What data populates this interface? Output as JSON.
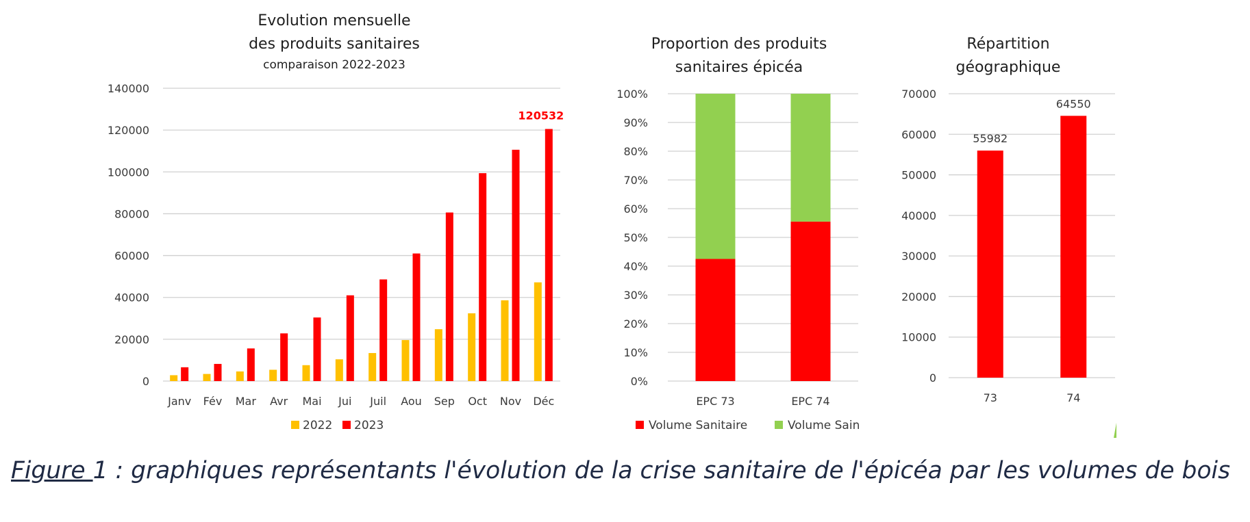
{
  "colors": {
    "y2022": "#ffc000",
    "y2023": "#ff0000",
    "sain": "#92d050",
    "grid": "#d0d0d0"
  },
  "chart_data": [
    {
      "type": "bar",
      "title": [
        "Evolution mensuelle",
        "des produits sanitaires"
      ],
      "subtitle": "comparaison 2022-2023",
      "categories": [
        "Janv",
        "Fév",
        "Mar",
        "Avr",
        "Mai",
        "Jui",
        "Juil",
        "Aou",
        "Sep",
        "Oct",
        "Nov",
        "Déc"
      ],
      "series": [
        {
          "name": "2022",
          "color": "#ffc000",
          "values": [
            2800,
            3400,
            4600,
            5400,
            7600,
            10400,
            13400,
            19600,
            24800,
            32400,
            38600,
            47200
          ]
        },
        {
          "name": "2023",
          "color": "#ff0000",
          "values": [
            6600,
            8200,
            15600,
            22800,
            30400,
            41000,
            48600,
            61000,
            80600,
            99400,
            110600,
            120532
          ]
        }
      ],
      "annotation": {
        "text": "120532",
        "category": "Déc",
        "series": "2023"
      },
      "ylim": [
        0,
        140000
      ],
      "yticks": [
        "0",
        "20000",
        "40000",
        "60000",
        "80000",
        "100000",
        "120000",
        "140000"
      ],
      "grid": true,
      "legend": "bottom"
    },
    {
      "type": "bar",
      "stacked": true,
      "title": [
        "Proportion des produits",
        "sanitaires épicéa"
      ],
      "categories": [
        "EPC 73",
        "EPC 74"
      ],
      "series": [
        {
          "name": "Volume Sanitaire",
          "color": "#ff0000",
          "values": [
            42.5,
            55.5
          ]
        },
        {
          "name": "Volume Sain",
          "color": "#92d050",
          "values": [
            57.5,
            44.5
          ]
        }
      ],
      "ylim": [
        0,
        100
      ],
      "yticks": [
        "0%",
        "10%",
        "20%",
        "30%",
        "40%",
        "50%",
        "60%",
        "70%",
        "80%",
        "90%",
        "100%"
      ],
      "grid": true,
      "legend": "bottom"
    },
    {
      "type": "bar",
      "title": [
        "Répartition",
        "géographique"
      ],
      "categories": [
        "73",
        "74"
      ],
      "series": [
        {
          "color": "#ff0000",
          "values": [
            55982,
            64550
          ]
        }
      ],
      "data_labels": [
        "55982",
        "64550"
      ],
      "ylim": [
        0,
        70000
      ],
      "yticks": [
        "0",
        "10000",
        "20000",
        "30000",
        "40000",
        "50000",
        "60000",
        "70000"
      ],
      "grid": true,
      "legend": "none"
    }
  ],
  "caption": {
    "label": "Figure ",
    "text": "1 : graphiques représentants l'évolution de la crise sanitaire de l'épicéa par les volumes de bois"
  }
}
